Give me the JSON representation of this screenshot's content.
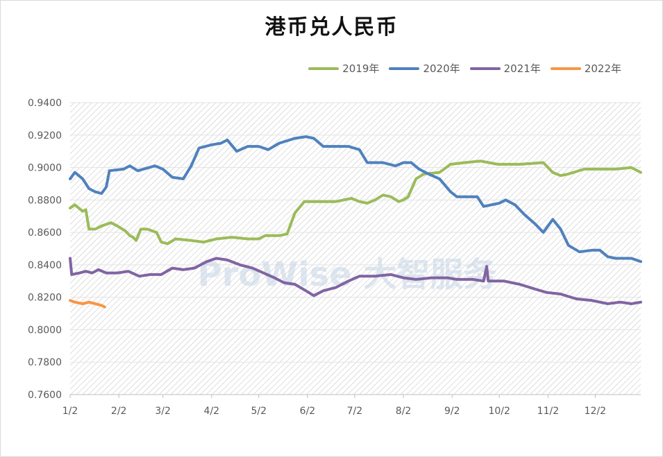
{
  "title": "港币兑人民币",
  "watermark": "ProWise 大智服务",
  "chart_data": {
    "type": "line",
    "title": "港币兑人民币",
    "xlabel": "",
    "ylabel": "",
    "x_axis": "day of year (1/2 to 12/31)",
    "x_ticks": [
      "1/2",
      "2/2",
      "3/2",
      "4/2",
      "5/2",
      "6/2",
      "7/2",
      "8/2",
      "9/2",
      "10/2",
      "11/2",
      "12/2"
    ],
    "y_ticks": [
      "0.7600",
      "0.7800",
      "0.8000",
      "0.8200",
      "0.8400",
      "0.8600",
      "0.8800",
      "0.9000",
      "0.9200",
      "0.9400"
    ],
    "ylim": [
      0.76,
      0.94
    ],
    "grid": true,
    "legend_position": "top-right",
    "series": [
      {
        "name": "2019年",
        "color": "#9BBB59",
        "points": [
          [
            "1/2",
            0.875
          ],
          [
            "1/5",
            0.877
          ],
          [
            "1/10",
            0.873
          ],
          [
            "1/12",
            0.874
          ],
          [
            "1/14",
            0.862
          ],
          [
            "1/18",
            0.862
          ],
          [
            "1/22",
            0.864
          ],
          [
            "1/28",
            0.866
          ],
          [
            "2/1",
            0.864
          ],
          [
            "2/6",
            0.861
          ],
          [
            "2/9",
            0.858
          ],
          [
            "2/11",
            0.857
          ],
          [
            "2/13",
            0.855
          ],
          [
            "2/16",
            0.862
          ],
          [
            "2/20",
            0.862
          ],
          [
            "2/26",
            0.86
          ],
          [
            "3/1",
            0.854
          ],
          [
            "3/5",
            0.853
          ],
          [
            "3/10",
            0.856
          ],
          [
            "3/20",
            0.855
          ],
          [
            "3/28",
            0.854
          ],
          [
            "4/5",
            0.856
          ],
          [
            "4/15",
            0.857
          ],
          [
            "4/25",
            0.856
          ],
          [
            "5/2",
            0.856
          ],
          [
            "5/6",
            0.858
          ],
          [
            "5/15",
            0.858
          ],
          [
            "5/20",
            0.859
          ],
          [
            "5/25",
            0.872
          ],
          [
            "5/31",
            0.879
          ],
          [
            "6/10",
            0.879
          ],
          [
            "6/20",
            0.879
          ],
          [
            "6/30",
            0.881
          ],
          [
            "7/5",
            0.879
          ],
          [
            "7/10",
            0.878
          ],
          [
            "7/15",
            0.88
          ],
          [
            "7/20",
            0.883
          ],
          [
            "7/25",
            0.882
          ],
          [
            "7/30",
            0.879
          ],
          [
            "8/2",
            0.88
          ],
          [
            "8/5",
            0.882
          ],
          [
            "8/10",
            0.893
          ],
          [
            "8/15",
            0.896
          ],
          [
            "8/25",
            0.897
          ],
          [
            "9/1",
            0.902
          ],
          [
            "9/10",
            0.903
          ],
          [
            "9/20",
            0.904
          ],
          [
            "10/1",
            0.902
          ],
          [
            "10/15",
            0.902
          ],
          [
            "10/30",
            0.903
          ],
          [
            "11/5",
            0.897
          ],
          [
            "11/10",
            0.895
          ],
          [
            "11/15",
            0.896
          ],
          [
            "11/25",
            0.899
          ],
          [
            "12/5",
            0.899
          ],
          [
            "12/15",
            0.899
          ],
          [
            "12/25",
            0.9
          ],
          [
            "12/31",
            0.897
          ]
        ]
      },
      {
        "name": "2020年",
        "color": "#4F81BD",
        "points": [
          [
            "1/2",
            0.893
          ],
          [
            "1/5",
            0.897
          ],
          [
            "1/10",
            0.893
          ],
          [
            "1/14",
            0.887
          ],
          [
            "1/18",
            0.885
          ],
          [
            "1/22",
            0.884
          ],
          [
            "1/25",
            0.888
          ],
          [
            "1/27",
            0.898
          ],
          [
            "2/5",
            0.899
          ],
          [
            "2/9",
            0.901
          ],
          [
            "2/14",
            0.898
          ],
          [
            "2/25",
            0.901
          ],
          [
            "3/2",
            0.899
          ],
          [
            "3/8",
            0.894
          ],
          [
            "3/15",
            0.893
          ],
          [
            "3/20",
            0.901
          ],
          [
            "3/25",
            0.912
          ],
          [
            "4/2",
            0.914
          ],
          [
            "4/8",
            0.915
          ],
          [
            "4/12",
            0.917
          ],
          [
            "4/18",
            0.91
          ],
          [
            "4/25",
            0.913
          ],
          [
            "5/2",
            0.913
          ],
          [
            "5/8",
            0.911
          ],
          [
            "5/15",
            0.915
          ],
          [
            "5/25",
            0.918
          ],
          [
            "6/1",
            0.919
          ],
          [
            "6/6",
            0.918
          ],
          [
            "6/12",
            0.913
          ],
          [
            "6/18",
            0.913
          ],
          [
            "6/28",
            0.913
          ],
          [
            "7/5",
            0.911
          ],
          [
            "7/10",
            0.903
          ],
          [
            "7/20",
            0.903
          ],
          [
            "7/28",
            0.901
          ],
          [
            "8/2",
            0.903
          ],
          [
            "8/7",
            0.903
          ],
          [
            "8/12",
            0.899
          ],
          [
            "8/18",
            0.896
          ],
          [
            "8/25",
            0.893
          ],
          [
            "9/1",
            0.885
          ],
          [
            "9/5",
            0.882
          ],
          [
            "9/12",
            0.882
          ],
          [
            "9/18",
            0.882
          ],
          [
            "9/22",
            0.876
          ],
          [
            "10/2",
            0.878
          ],
          [
            "10/6",
            0.88
          ],
          [
            "10/12",
            0.877
          ],
          [
            "10/18",
            0.871
          ],
          [
            "10/25",
            0.865
          ],
          [
            "10/30",
            0.86
          ],
          [
            "11/5",
            0.868
          ],
          [
            "11/10",
            0.862
          ],
          [
            "11/15",
            0.852
          ],
          [
            "11/22",
            0.848
          ],
          [
            "11/30",
            0.849
          ],
          [
            "12/5",
            0.849
          ],
          [
            "12/10",
            0.845
          ],
          [
            "12/15",
            0.844
          ],
          [
            "12/20",
            0.844
          ],
          [
            "12/25",
            0.844
          ],
          [
            "12/31",
            0.842
          ]
        ]
      },
      {
        "name": "2021年",
        "color": "#8064A2",
        "points": [
          [
            "1/2",
            0.844
          ],
          [
            "1/3",
            0.834
          ],
          [
            "1/8",
            0.835
          ],
          [
            "1/12",
            0.836
          ],
          [
            "1/16",
            0.835
          ],
          [
            "1/20",
            0.837
          ],
          [
            "1/25",
            0.835
          ],
          [
            "2/1",
            0.835
          ],
          [
            "2/8",
            0.836
          ],
          [
            "2/15",
            0.833
          ],
          [
            "2/22",
            0.834
          ],
          [
            "3/1",
            0.834
          ],
          [
            "3/8",
            0.838
          ],
          [
            "3/15",
            0.837
          ],
          [
            "3/22",
            0.838
          ],
          [
            "3/30",
            0.842
          ],
          [
            "4/5",
            0.844
          ],
          [
            "4/12",
            0.843
          ],
          [
            "4/20",
            0.84
          ],
          [
            "4/28",
            0.838
          ],
          [
            "5/5",
            0.835
          ],
          [
            "5/12",
            0.832
          ],
          [
            "5/18",
            0.829
          ],
          [
            "5/25",
            0.828
          ],
          [
            "6/1",
            0.824
          ],
          [
            "6/6",
            0.821
          ],
          [
            "6/12",
            0.824
          ],
          [
            "6/20",
            0.826
          ],
          [
            "6/28",
            0.83
          ],
          [
            "7/5",
            0.833
          ],
          [
            "7/15",
            0.833
          ],
          [
            "7/25",
            0.834
          ],
          [
            "8/2",
            0.832
          ],
          [
            "8/10",
            0.831
          ],
          [
            "8/20",
            0.832
          ],
          [
            "8/30",
            0.832
          ],
          [
            "9/5",
            0.831
          ],
          [
            "9/15",
            0.831
          ],
          [
            "9/22",
            0.83
          ],
          [
            "9/24",
            0.839
          ],
          [
            "9/25",
            0.83
          ],
          [
            "10/5",
            0.83
          ],
          [
            "10/15",
            0.828
          ],
          [
            "10/25",
            0.825
          ],
          [
            "11/1",
            0.823
          ],
          [
            "11/10",
            0.822
          ],
          [
            "11/20",
            0.819
          ],
          [
            "11/30",
            0.818
          ],
          [
            "12/10",
            0.816
          ],
          [
            "12/18",
            0.817
          ],
          [
            "12/25",
            0.816
          ],
          [
            "12/31",
            0.817
          ]
        ]
      },
      {
        "name": "2022年",
        "color": "#F79646",
        "points": [
          [
            "1/2",
            0.818
          ],
          [
            "1/5",
            0.817
          ],
          [
            "1/10",
            0.816
          ],
          [
            "1/14",
            0.817
          ],
          [
            "1/18",
            0.816
          ],
          [
            "1/22",
            0.815
          ],
          [
            "1/24",
            0.814
          ]
        ]
      }
    ]
  }
}
